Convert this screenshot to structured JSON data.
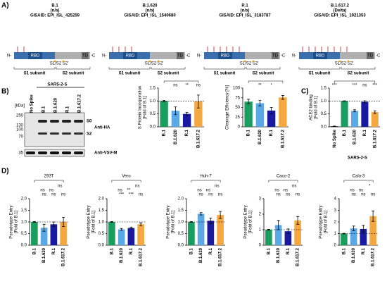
{
  "panel_labels": [
    "A)",
    "B)",
    "C)",
    "D)"
  ],
  "diagrams": [
    {
      "name": "B.1",
      "lineage": "(n/a)",
      "gisaid": "GISAID: EPI_ISL_425259"
    },
    {
      "name": "B.1.620",
      "lineage": "(n/a)",
      "gisaid": "GISAID: EPI_ISL_1540680"
    },
    {
      "name": "R.1",
      "lineage": "(n/a)",
      "gisaid": "GISAID: EPI_ISL_3183787"
    },
    {
      "name": "B.1.617.2",
      "lineage": "(Delta)",
      "gisaid": "GISAID: EPI_ISL_1921353"
    }
  ],
  "diagram_labels": {
    "n": "N-",
    "c": "-C",
    "rbd": "RBD",
    "td": "TD",
    "s1": "S1 subunit",
    "s2": "S2 subunit",
    "site": "S1/S2 S2'"
  },
  "blot": {
    "group": "SARS-2-S",
    "lanes": [
      "No Spike",
      "B.1",
      "B.1.620",
      "R.1",
      "B.1.617.2"
    ],
    "kda": "[kDa]",
    "markers": [
      250,
      130,
      100,
      70,
      35
    ],
    "bands": [
      "S0",
      "S2"
    ],
    "antibodies": [
      "Anti-HA",
      "Anti-VSV-M"
    ]
  },
  "chart_data": [
    {
      "type": "bar",
      "ylabel": [
        "S Protein Incorporation",
        "[Fold of B.1]"
      ],
      "categories": [
        "B.1",
        "B.1.620",
        "R.1",
        "B.1.617.2"
      ],
      "values": [
        1.0,
        0.62,
        0.5,
        0.98
      ],
      "errors": [
        0.02,
        0.15,
        0.06,
        0.25
      ],
      "colors": [
        "#1a9e5f",
        "#5aa9e6",
        "#1a1aa0",
        "#f5a742"
      ],
      "ylim": [
        0,
        1.5
      ],
      "yticks": [
        {
          "value": 0,
          "label": "0.0"
        },
        0.5,
        {
          "value": 1,
          "label": "1.0"
        },
        1.5
      ],
      "reference": 1,
      "annotations": [
        "ns",
        "**",
        "ns"
      ]
    },
    {
      "type": "bar",
      "ylabel": [
        "Cleavage Efficiency [%]"
      ],
      "categories": [
        "B.1",
        "B.1.620",
        "R.1",
        "B.1.617.2"
      ],
      "values": [
        65,
        61,
        42,
        76
      ],
      "errors": [
        6,
        7,
        8,
        5
      ],
      "colors": [
        "#1a9e5f",
        "#5aa9e6",
        "#1a1aa0",
        "#f5a742"
      ],
      "ylim": [
        0,
        100
      ],
      "yticks": [
        0,
        25,
        50,
        75,
        100
      ],
      "annotations": [
        "**",
        "*"
      ]
    },
    {
      "type": "bar",
      "ylabel": [
        "ACE2 binding",
        "[Fold of B.1]"
      ],
      "xlabel": "SARS-2-S",
      "categories": [
        "No Spike",
        "B.1",
        "B.1.620",
        "R.1",
        "B.1.617.2"
      ],
      "values": [
        0.02,
        1.0,
        0.62,
        0.97,
        0.57
      ],
      "errors": [
        0.01,
        0.01,
        0.04,
        0.04,
        0.05
      ],
      "colors": [
        "#000000",
        "#1a9e5f",
        "#5aa9e6",
        "#1a1aa0",
        "#f5a742"
      ],
      "ylim": [
        0,
        1.5
      ],
      "yticks": [
        {
          "value": 0,
          "label": "0.0"
        },
        0.5,
        {
          "value": 1,
          "label": "1.0"
        },
        1.5
      ],
      "reference": 1,
      "annotations": [
        "***",
        "***",
        "ns",
        "***"
      ]
    },
    {
      "type": "bar",
      "title": "293T",
      "ylabel": [
        "Pseudotype Entry",
        "[Fold of B.1]"
      ],
      "categories": [
        "B.1",
        "B.1.620",
        "R.1",
        "B.1.617.2"
      ],
      "values": [
        1.0,
        0.75,
        0.9,
        1.0
      ],
      "errors": [
        0.02,
        0.15,
        0.1,
        0.2
      ],
      "colors": [
        "#1a9e5f",
        "#5aa9e6",
        "#1a1aa0",
        "#f5a742"
      ],
      "ylim": [
        0,
        2
      ],
      "yticks": [
        {
          "value": 0,
          "label": "0.0"
        },
        0.5,
        {
          "value": 1,
          "label": "1.0"
        },
        1.5,
        {
          "value": 2,
          "label": "2.0"
        }
      ],
      "reference": 1,
      "annotations": [
        "ns",
        "ns",
        "ns",
        "ns",
        "ns",
        "ns"
      ]
    },
    {
      "type": "bar",
      "title": "Vero",
      "ylabel": [
        "Pseudotype Entry",
        "[Fold of B.1]"
      ],
      "categories": [
        "B.1",
        "B.1.620",
        "R.1",
        "B.1.617.2"
      ],
      "values": [
        1.0,
        0.68,
        0.74,
        0.9
      ],
      "errors": [
        0.02,
        0.04,
        0.04,
        0.06
      ],
      "colors": [
        "#1a9e5f",
        "#5aa9e6",
        "#1a1aa0",
        "#f5a742"
      ],
      "ylim": [
        0,
        2
      ],
      "yticks": [
        {
          "value": 0,
          "label": "0.0"
        },
        0.5,
        {
          "value": 1,
          "label": "1.0"
        },
        1.5,
        {
          "value": 2,
          "label": "2.0"
        }
      ],
      "reference": 1,
      "annotations": [
        "***",
        "***",
        "ns",
        "ns",
        "**",
        "ns"
      ]
    },
    {
      "type": "bar",
      "title": "Huh-7",
      "ylabel": [
        "Pseudotype Entry",
        "[Fold of B.1]"
      ],
      "categories": [
        "B.1",
        "B.1.620",
        "R.1",
        "B.1.617.2"
      ],
      "values": [
        1.0,
        1.35,
        1.05,
        1.3
      ],
      "errors": [
        0.02,
        0.05,
        0.12,
        0.15
      ],
      "colors": [
        "#1a9e5f",
        "#5aa9e6",
        "#1a1aa0",
        "#f5a742"
      ],
      "ylim": [
        0,
        2
      ],
      "yticks": [
        {
          "value": 0,
          "label": "0.0"
        },
        0.5,
        {
          "value": 1,
          "label": "1.0"
        },
        1.5,
        {
          "value": 2,
          "label": "2.0"
        }
      ],
      "reference": 1,
      "annotations": [
        "ns",
        "ns",
        "ns",
        "ns",
        "ns",
        "ns"
      ]
    },
    {
      "type": "bar",
      "title": "Caco-2",
      "ylabel": [
        "Pseudotype Entry",
        "[Fold of B.1]"
      ],
      "categories": [
        "B.1",
        "B.1.620",
        "R.1",
        "B.1.617.2"
      ],
      "values": [
        1.0,
        1.3,
        0.9,
        1.6
      ],
      "errors": [
        0.02,
        0.3,
        0.15,
        0.25
      ],
      "colors": [
        "#1a9e5f",
        "#5aa9e6",
        "#1a1aa0",
        "#f5a742"
      ],
      "ylim": [
        0,
        3
      ],
      "yticks": [
        0,
        1,
        2,
        3
      ],
      "reference": 1,
      "annotations": [
        "ns",
        "ns",
        "ns",
        "ns",
        "ns",
        "ns"
      ]
    },
    {
      "type": "bar",
      "title": "Calu-3",
      "ylabel": [
        "Pseudotype Entry",
        "[Fold of B.1]"
      ],
      "categories": [
        "B.1",
        "B.1.620",
        "R.1",
        "B.1.617.2"
      ],
      "values": [
        1.0,
        1.45,
        1.4,
        2.5
      ],
      "errors": [
        0.02,
        0.2,
        0.3,
        0.45
      ],
      "colors": [
        "#1a9e5f",
        "#5aa9e6",
        "#1a1aa0",
        "#f5a742"
      ],
      "ylim": [
        0,
        4
      ],
      "yticks": [
        0,
        1,
        2,
        3,
        4
      ],
      "reference": 1,
      "annotations": [
        "ns",
        "ns",
        "ns",
        "ns",
        "ns",
        "*"
      ]
    }
  ]
}
